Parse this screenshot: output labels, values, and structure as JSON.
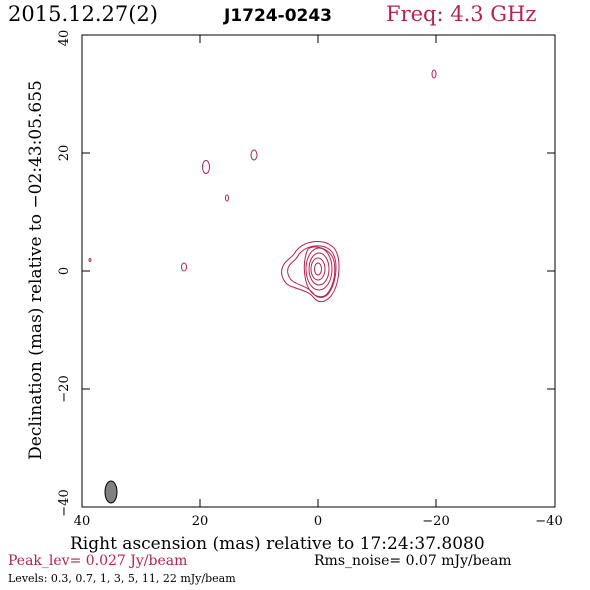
{
  "header": {
    "date": "2015.12.27(2)",
    "source": "J1724-0243",
    "freq": "Freq: 4.3 GHz"
  },
  "axes": {
    "xlabel": "Right ascension (mas) relative to 17:24:37.8080",
    "ylabel": "Declination (mas) relative to −02:43:05.655",
    "x_ticks": [
      "40",
      "20",
      "0",
      "−20",
      "−40"
    ],
    "y_ticks": [
      "40",
      "20",
      "0",
      "−20",
      "−40"
    ],
    "x_range_mas": [
      40,
      -40
    ],
    "y_range_mas": [
      -40,
      40
    ]
  },
  "footer": {
    "peak": "Peak_lev=  0.027 Jy/beam",
    "rms": "Rms_noise= 0.07 mJy/beam",
    "levels": "Levels: 0.3,  0.7,    1,    3,    5,   11,   22 mJy/beam"
  },
  "colors": {
    "contour": "#b0254f",
    "beam": "#808080",
    "accent": "#b0254f"
  }
}
